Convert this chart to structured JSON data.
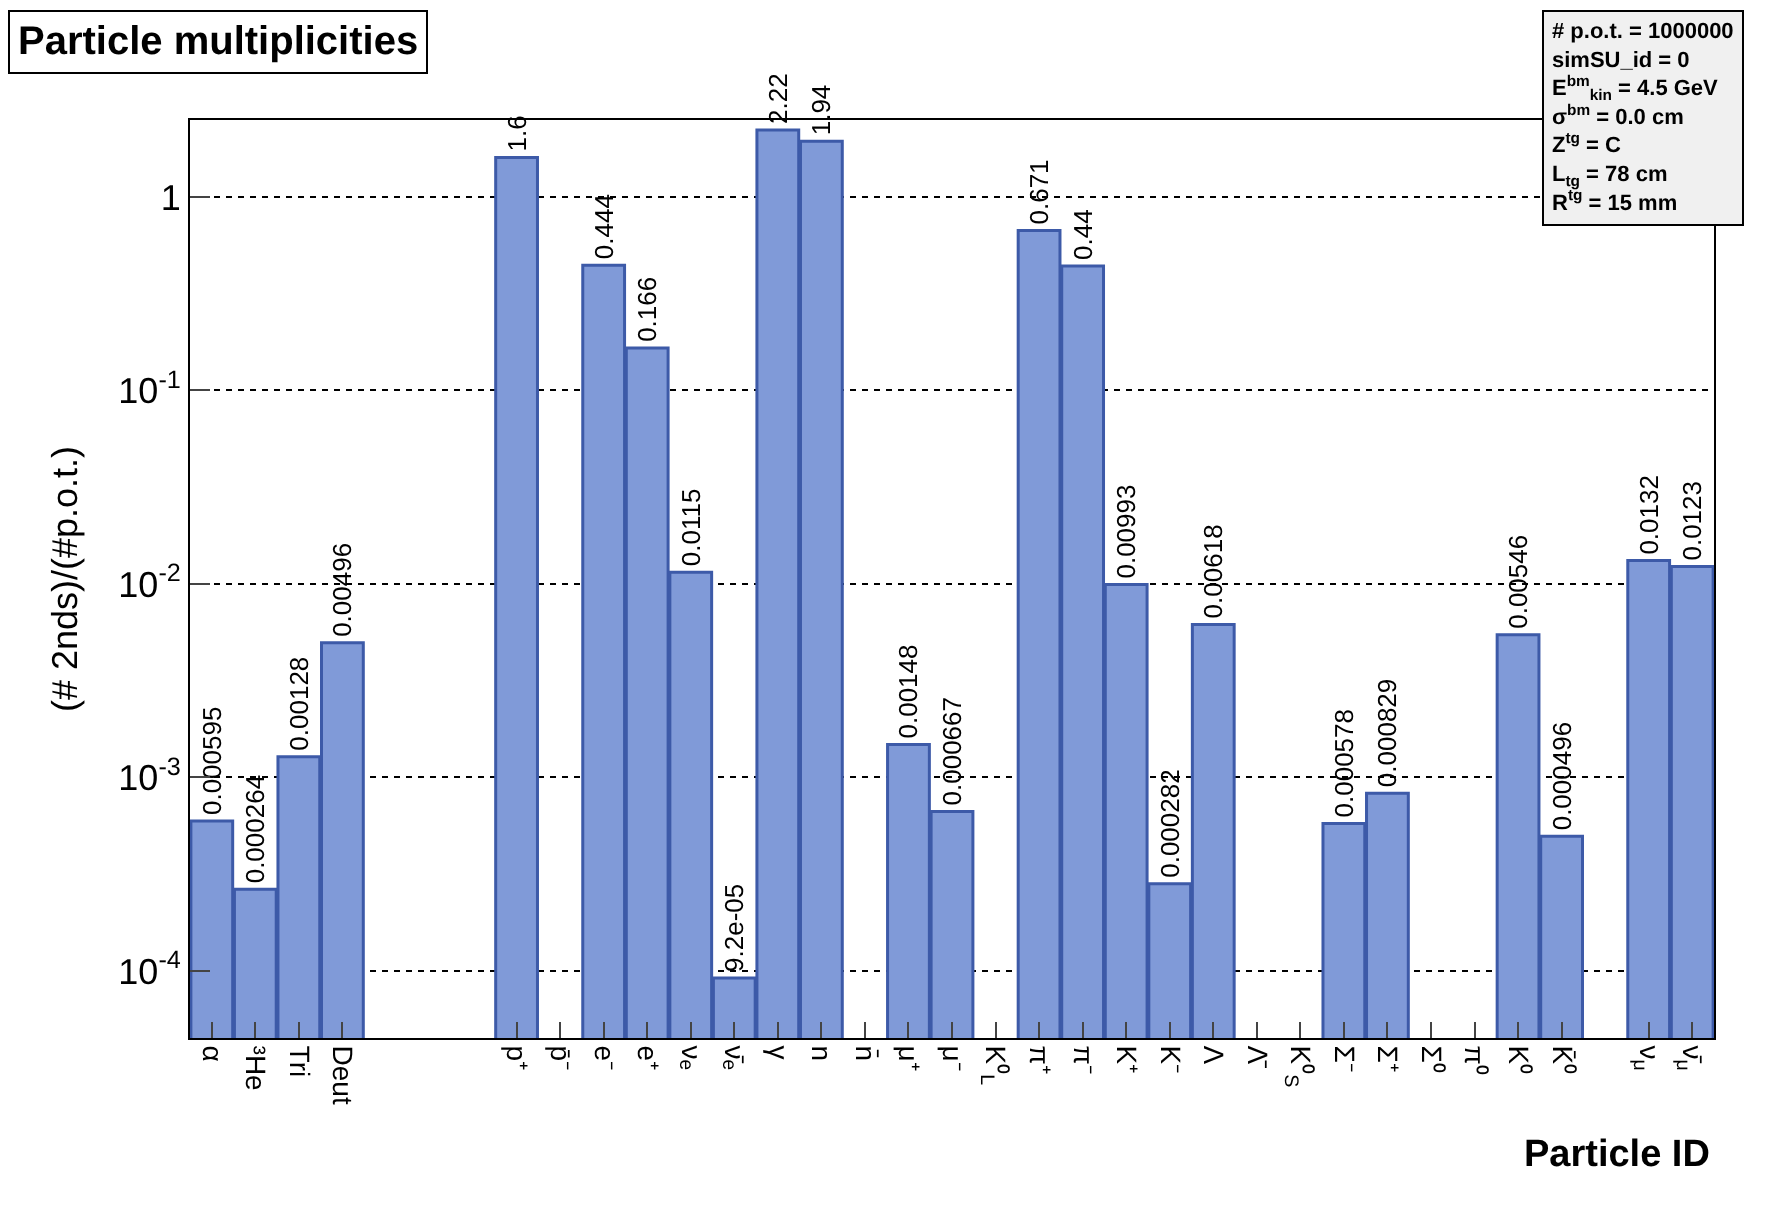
{
  "chart_data": {
    "type": "bar",
    "title": "Particle multiplicities",
    "xlabel": "Particle ID",
    "ylabel": "(# 2nds)/(#p.o.t.)",
    "categories": [
      "α",
      "³He",
      "Tri",
      "Deut",
      null,
      null,
      null,
      "p⁺",
      "p̄⁻",
      "e⁻",
      "e⁺",
      "νₑ",
      "ν̄ₑ",
      "γ",
      "n",
      "n̄",
      "μ⁺",
      "μ⁻",
      "K⁰$_{L}$",
      "π⁺",
      "π⁻",
      "K⁺",
      "K⁻",
      "Λ",
      "Λ̄",
      "K⁰$_{S}$",
      "Σ⁻",
      "Σ⁺",
      "Σ⁰",
      "π⁰",
      "K⁰",
      "K̄⁰",
      null,
      "ν$_{μ}$",
      "ν̄$_{μ}$"
    ],
    "values": [
      0.000595,
      0.000264,
      0.00128,
      0.00496,
      null,
      null,
      null,
      1.6,
      null,
      0.444,
      0.166,
      0.0115,
      9.2e-05,
      2.22,
      1.94,
      null,
      0.00148,
      0.000667,
      null,
      0.671,
      0.44,
      0.00993,
      0.000282,
      0.00618,
      null,
      null,
      0.000578,
      0.000829,
      null,
      null,
      0.00546,
      0.000496,
      null,
      0.0132,
      0.0123
    ],
    "value_labels": [
      "0.000595",
      "0.000264",
      "0.00128",
      "0.00496",
      null,
      null,
      null,
      "1.6",
      null,
      "0.444",
      "0.166",
      "0.0115",
      "9.2e-05",
      "2.22",
      "1.94",
      null,
      "0.00148",
      "0.000667",
      null,
      "0.671",
      "0.44",
      "0.00993",
      "0.000282",
      "0.00618",
      null,
      null,
      "0.000578",
      "0.000829",
      null,
      null,
      "0.00546",
      "0.000496",
      null,
      "0.0132",
      "0.0123"
    ],
    "color": "#809ad8",
    "log": true,
    "ylim": [
      4.5e-05,
      2.5
    ],
    "yticks": [
      {
        "value": 0.0001,
        "label": "10$^{-4}$"
      },
      {
        "value": 0.001,
        "label": "10$^{-3}$"
      },
      {
        "value": 0.01,
        "label": "10$^{-2}$"
      },
      {
        "value": 0.1,
        "label": "10$^{-1}$"
      },
      1
    ],
    "grid": "y",
    "legend": false,
    "annotations": [
      "# p.o.t. = 1000000\nsimSU_id = 0\nE$^{bm}$$_{kin}$ = 4.5 GeV\nσ$^{bm}$ = 0.0 cm\nZ$^{tg}$ = C\nL$_{tg}$ = 78 cm\nR$^{tg}$ = 15 mm"
    ]
  }
}
